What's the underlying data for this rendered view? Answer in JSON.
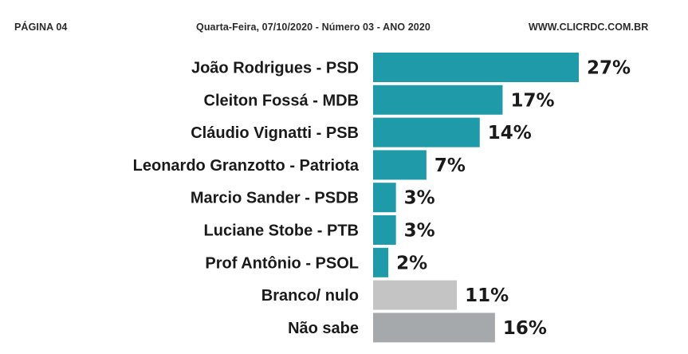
{
  "header": {
    "page": "PÁGINA 04",
    "issue": "Quarta-Feira, 07/10/2020 - Número 03 - ANO 2020",
    "site": "WWW.CLICRDC.COM.BR"
  },
  "colors": {
    "candidate": "#1e9aa8",
    "blank": "#c4c4c4",
    "unknown": "#a6a9ab"
  },
  "chart_data": {
    "type": "bar",
    "orientation": "horizontal",
    "title": "",
    "xlabel": "",
    "ylabel": "",
    "xlim": [
      0,
      27
    ],
    "grid": false,
    "categories": [
      "João Rodrigues - PSD",
      "Cleiton Fossá - MDB",
      "Cláudio Vignatti - PSB",
      "Leonardo Granzotto - Patriota",
      "Marcio Sander - PSDB",
      "Luciane Stobe - PTB",
      "Prof Antônio - PSOL",
      "Branco/ nulo",
      "Não sabe"
    ],
    "values": [
      27,
      17,
      14,
      7,
      3,
      3,
      2,
      11,
      16
    ],
    "value_labels": [
      "27%",
      "17%",
      "14%",
      "7%",
      "3%",
      "3%",
      "2%",
      "11%",
      "16%"
    ],
    "bar_colors": [
      "#1e9aa8",
      "#1e9aa8",
      "#1e9aa8",
      "#1e9aa8",
      "#1e9aa8",
      "#1e9aa8",
      "#1e9aa8",
      "#c4c4c4",
      "#a6a9ab"
    ]
  }
}
